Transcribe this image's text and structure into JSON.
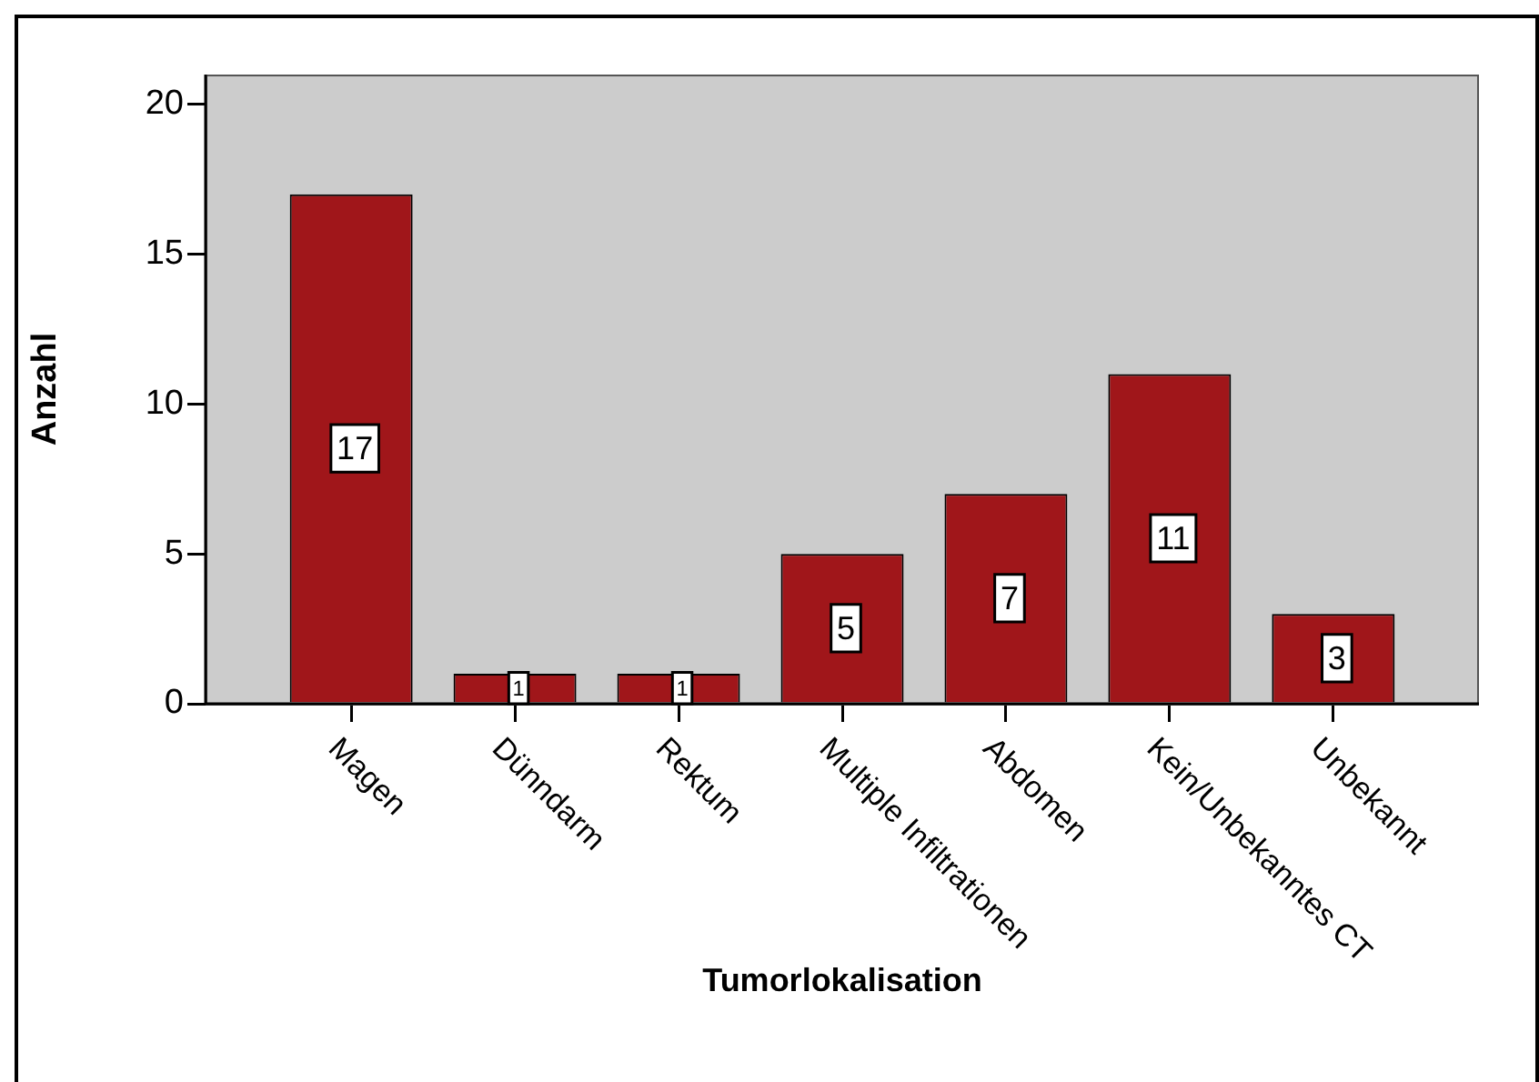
{
  "chart_data": {
    "type": "bar",
    "xlabel": "Tumorlokalisation",
    "ylabel": "Anzahl",
    "categories": [
      "Magen",
      "Dünndarm",
      "Rektum",
      "Multiple Infiltrationen",
      "Abdomen",
      "Kein/Unbekanntes CT",
      "Unbekannt"
    ],
    "values": [
      17,
      1,
      1,
      5,
      7,
      11,
      3
    ],
    "color": "#a0161a",
    "ylim": [
      0,
      21
    ],
    "yticks": [
      0,
      5,
      10,
      15,
      20
    ],
    "data_labels": true
  }
}
